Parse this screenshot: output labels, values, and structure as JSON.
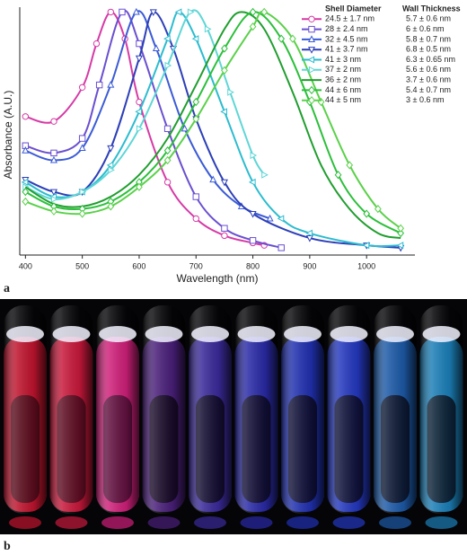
{
  "panel_labels": [
    "a",
    "b"
  ],
  "chart_data": {
    "type": "line",
    "x_label": "Wavelength (nm)",
    "y_label": "Absorbance (A.U.)",
    "legend_headers": [
      "Shell Diameter",
      "Wall Thickness"
    ],
    "xlim": [
      390,
      1085
    ],
    "xticks": [
      400,
      500,
      600,
      700,
      800,
      900,
      1000
    ],
    "ylim": [
      0,
      1.02
    ],
    "series": [
      {
        "name": "24.5 ± 1.7 nm",
        "wall_thickness": "5.7 ± 0.6 nm",
        "color": "#d63aa6",
        "marker": "circle",
        "x": [
          400,
          450,
          500,
          525,
          550,
          575,
          600,
          650,
          700,
          750,
          800,
          820
        ],
        "values": [
          0.57,
          0.55,
          0.69,
          0.87,
          1.0,
          0.89,
          0.63,
          0.3,
          0.15,
          0.08,
          0.05,
          0.04
        ]
      },
      {
        "name": "28 ± 2.4 nm",
        "wall_thickness": "6 ± 0.6 nm",
        "color": "#6a4fd0",
        "marker": "square",
        "x": [
          400,
          450,
          500,
          530,
          570,
          600,
          650,
          700,
          750,
          800,
          850
        ],
        "values": [
          0.45,
          0.42,
          0.48,
          0.7,
          1.0,
          0.87,
          0.52,
          0.24,
          0.11,
          0.06,
          0.03
        ]
      },
      {
        "name": "32 ± 4.5 nm",
        "wall_thickness": "5.8 ± 0.7 nm",
        "color": "#3b5bd6",
        "marker": "triangle-up",
        "x": [
          400,
          450,
          500,
          550,
          595,
          630,
          680,
          730,
          780,
          830
        ],
        "values": [
          0.43,
          0.39,
          0.44,
          0.7,
          1.0,
          0.85,
          0.52,
          0.31,
          0.2,
          0.15
        ]
      },
      {
        "name": "41 ± 3.7 nm",
        "wall_thickness": "6.8 ± 0.5 nm",
        "color": "#2c3fb8",
        "marker": "triangle-down",
        "x": [
          400,
          450,
          500,
          550,
          600,
          625,
          660,
          700,
          750,
          800,
          900,
          1000,
          1060
        ],
        "values": [
          0.31,
          0.26,
          0.26,
          0.44,
          0.81,
          1.0,
          0.85,
          0.56,
          0.3,
          0.17,
          0.07,
          0.04,
          0.03
        ]
      },
      {
        "name": "41 ± 3 nm",
        "wall_thickness": "6.3 ± 0.65 nm",
        "color": "#2bbccf",
        "marker": "triangle-left",
        "x": [
          400,
          450,
          500,
          550,
          600,
          650,
          670,
          700,
          750,
          800,
          850,
          900,
          1000,
          1060
        ],
        "values": [
          0.3,
          0.24,
          0.26,
          0.37,
          0.59,
          0.89,
          1.0,
          0.89,
          0.59,
          0.3,
          0.15,
          0.09,
          0.04,
          0.04
        ]
      },
      {
        "name": "37 ± 2 nm",
        "wall_thickness": "5.6 ± 0.6 nm",
        "color": "#5fd6d6",
        "marker": "triangle-right",
        "x": [
          400,
          450,
          500,
          550,
          600,
          650,
          690,
          720,
          760,
          800,
          820
        ],
        "values": [
          0.28,
          0.23,
          0.26,
          0.35,
          0.52,
          0.78,
          1.0,
          0.93,
          0.67,
          0.41,
          0.33
        ]
      },
      {
        "name": "36 ± 2 nm",
        "wall_thickness": "3.7 ± 0.6 nm",
        "color": "#1f9e2e",
        "marker": "none",
        "x": [
          400,
          450,
          500,
          550,
          600,
          650,
          700,
          750,
          780,
          820,
          870,
          920,
          970,
          1020,
          1060
        ],
        "values": [
          0.28,
          0.21,
          0.2,
          0.24,
          0.33,
          0.48,
          0.7,
          0.93,
          1.0,
          0.93,
          0.67,
          0.37,
          0.19,
          0.09,
          0.07
        ]
      },
      {
        "name": "44 ± 6 nm",
        "wall_thickness": "5.4 ± 0.7 nm",
        "color": "#2bbf3a",
        "marker": "diamond",
        "x": [
          400,
          450,
          500,
          550,
          600,
          650,
          700,
          750,
          800,
          850,
          900,
          950,
          1000,
          1060
        ],
        "values": [
          0.26,
          0.2,
          0.19,
          0.22,
          0.3,
          0.43,
          0.63,
          0.85,
          1.0,
          0.89,
          0.63,
          0.33,
          0.17,
          0.09
        ]
      },
      {
        "name": "44 ± 5 nm",
        "wall_thickness": "3 ± 0.6 nm",
        "color": "#5ad14a",
        "marker": "diamond",
        "x": [
          400,
          450,
          500,
          550,
          600,
          650,
          700,
          750,
          800,
          820,
          870,
          920,
          970,
          1020,
          1060
        ],
        "values": [
          0.22,
          0.18,
          0.17,
          0.2,
          0.28,
          0.39,
          0.56,
          0.76,
          0.94,
          1.0,
          0.89,
          0.63,
          0.37,
          0.19,
          0.11
        ]
      }
    ]
  }
}
